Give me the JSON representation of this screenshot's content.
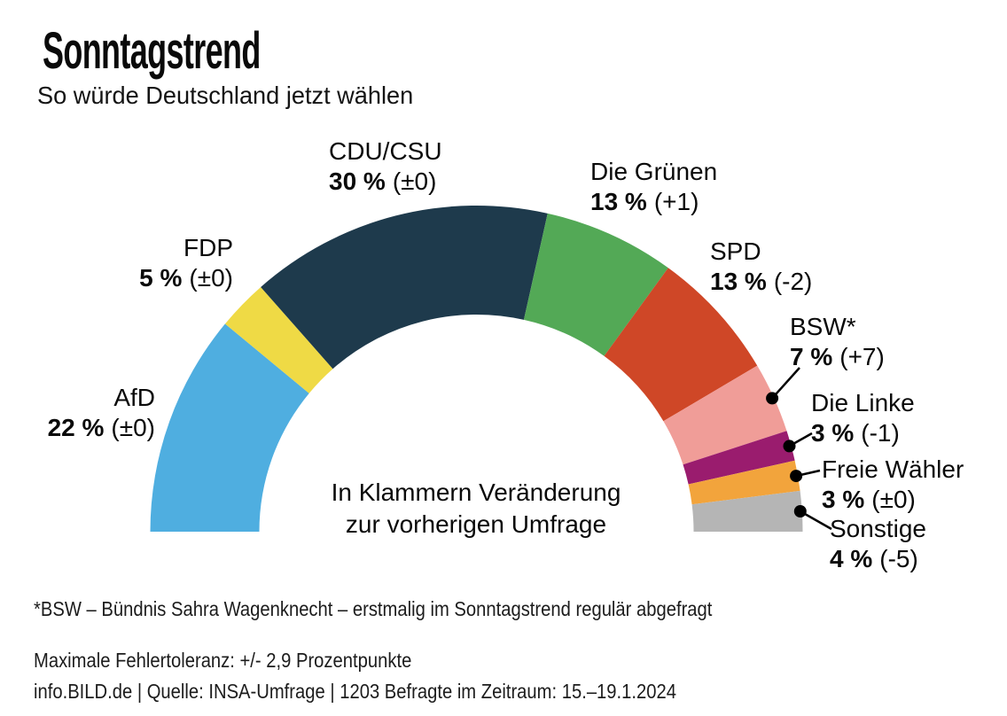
{
  "header": {
    "title": "Sonntagstrend",
    "subtitle": "So würde Deutschland jetzt wählen"
  },
  "chart_data": {
    "type": "donut-semicircle",
    "title": "Sonntagstrend",
    "subtitle": "So würde Deutschland jetzt wählen",
    "unit": "percent",
    "note_line1": "In Klammern Veränderung",
    "note_line2": "zur vorherigen Umfrage",
    "segments": [
      {
        "name": "AfD",
        "value": 22,
        "change": 0,
        "value_label": "22 %",
        "change_label": "(±0)",
        "color": "#4FAEE0",
        "leader": false
      },
      {
        "name": "FDP",
        "value": 5,
        "change": 0,
        "value_label": "5 %",
        "change_label": "(±0)",
        "color": "#EFDA45",
        "leader": false
      },
      {
        "name": "CDU/CSU",
        "value": 30,
        "change": 0,
        "value_label": "30 %",
        "change_label": "(±0)",
        "color": "#1E3A4C",
        "leader": false
      },
      {
        "name": "Die Grünen",
        "value": 13,
        "change": 1,
        "value_label": "13 %",
        "change_label": "(+1)",
        "color": "#53A956",
        "leader": false
      },
      {
        "name": "SPD",
        "value": 13,
        "change": -2,
        "value_label": "13 %",
        "change_label": "(-2)",
        "color": "#CF4727",
        "leader": false
      },
      {
        "name": "BSW*",
        "value": 7,
        "change": 7,
        "value_label": "7 %",
        "change_label": "(+7)",
        "color": "#F09D98",
        "leader": true
      },
      {
        "name": "Die Linke",
        "value": 3,
        "change": -1,
        "value_label": "3 %",
        "change_label": "(-1)",
        "color": "#9A1C6E",
        "leader": true
      },
      {
        "name": "Freie Wähler",
        "value": 3,
        "change": 0,
        "value_label": "3 %",
        "change_label": "(±0)",
        "color": "#F2A43C",
        "leader": true
      },
      {
        "name": "Sonstige",
        "value": 4,
        "change": -5,
        "value_label": "4 %",
        "change_label": "(-5)",
        "color": "#B5B5B5",
        "leader": true
      }
    ]
  },
  "footnote": "*BSW – Bündnis Sahra Wagenknecht – erstmalig im Sonntagstrend regulär abgefragt",
  "footer": {
    "tolerance": "Maximale Fehlertoleranz: +/- 2,9 Prozentpunkte",
    "source": "info.BILD.de | Quelle: INSA-Umfrage | 1203 Befragte im Zeitraum: 15.–19.1.2024"
  }
}
